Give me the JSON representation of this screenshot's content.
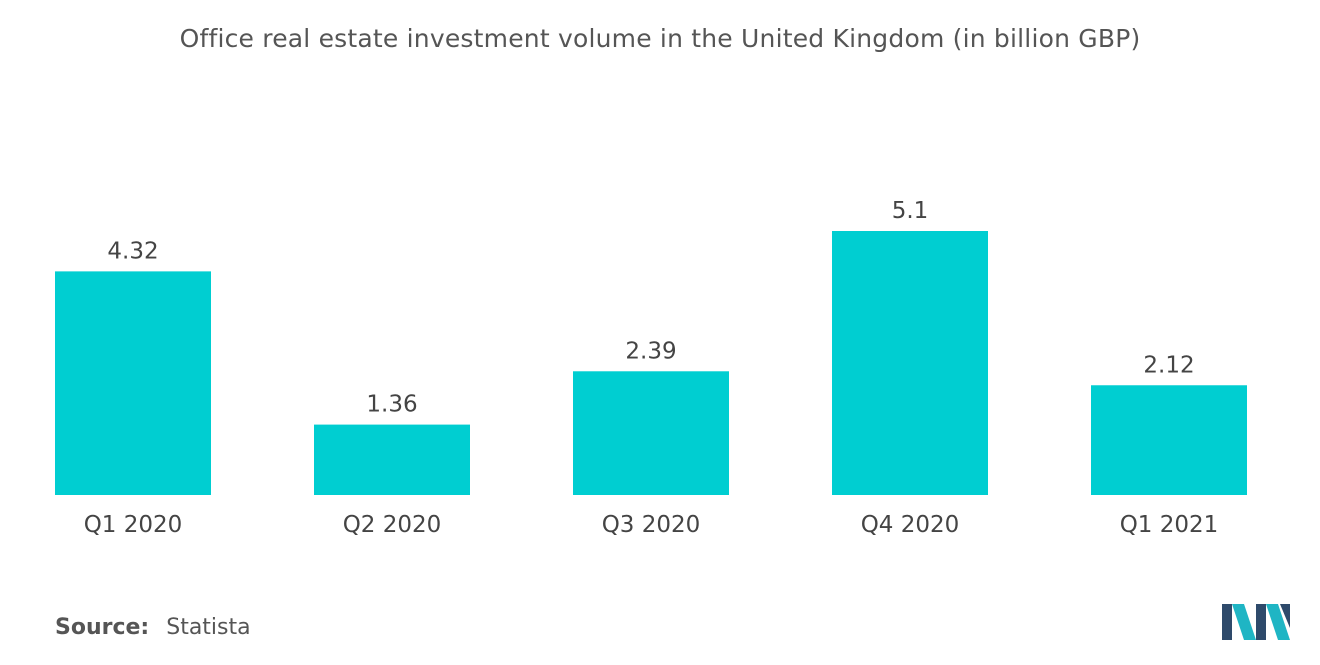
{
  "chart_data": {
    "type": "bar",
    "title": "Office real estate investment volume in the United Kingdom (in billion GBP)",
    "categories": [
      "Q1 2020",
      "Q2 2020",
      "Q3 2020",
      "Q4 2020",
      "Q1 2021"
    ],
    "values": [
      4.32,
      1.36,
      2.39,
      5.1,
      2.12
    ],
    "value_labels": [
      "4.32",
      "1.36",
      "2.39",
      "5.1",
      "2.12"
    ],
    "xlabel": "",
    "ylabel": "",
    "ylim": [
      0,
      5.1
    ],
    "grid": false,
    "legend": "none",
    "bar_color": "#00CED1"
  },
  "footer": {
    "source_label": "Source:",
    "source_value": "Statista"
  },
  "colors": {
    "logo_dark": "#2E4A6B",
    "logo_teal": "#1FB5C4"
  }
}
